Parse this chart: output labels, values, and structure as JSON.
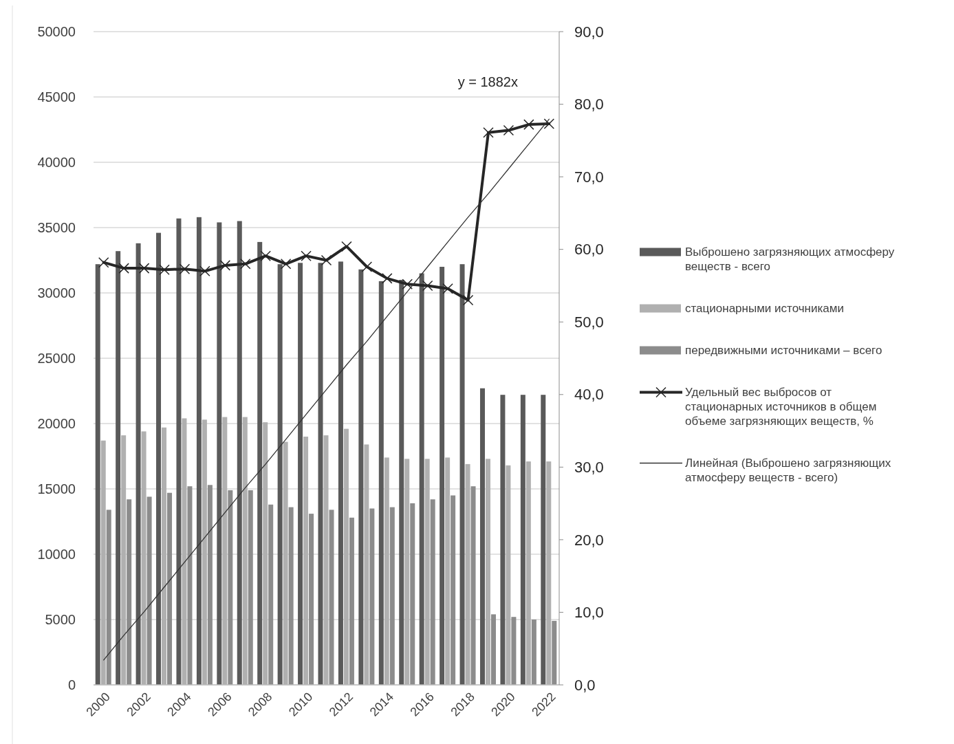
{
  "chart_data": {
    "type": "bar",
    "categories": [
      "2000",
      null,
      "2002",
      null,
      "2004",
      null,
      "2006",
      null,
      "2008",
      null,
      "2010",
      null,
      "2012",
      null,
      "2014",
      null,
      "2016",
      null,
      "2018",
      null,
      "2020",
      null,
      "2022"
    ],
    "series": [
      {
        "name": "Выброшено загрязняющих атмосферу веществ - всего",
        "color": "#5a5a5a",
        "values": [
          32200,
          33200,
          33800,
          34600,
          35700,
          35800,
          35400,
          35500,
          33900,
          32200,
          32300,
          32300,
          32400,
          31800,
          30900,
          31000,
          31500,
          32000,
          32200,
          22700,
          22200,
          22200,
          22200
        ]
      },
      {
        "name": "стационарными источниками",
        "color": "#b0b0b0",
        "values": [
          18700,
          19100,
          19400,
          19700,
          20400,
          20300,
          20500,
          20500,
          20100,
          18600,
          19000,
          19100,
          19600,
          18400,
          17400,
          17300,
          17300,
          17400,
          16900,
          17300,
          16800,
          17100,
          17100
        ]
      },
      {
        "name": "передвижными источниками – всего",
        "color": "#8c8c8c",
        "values": [
          13400,
          14200,
          14400,
          14700,
          15200,
          15300,
          14900,
          14900,
          13800,
          13600,
          13100,
          13400,
          12800,
          13500,
          13600,
          13900,
          14200,
          14500,
          15200,
          5400,
          5200,
          5000,
          4900
        ]
      },
      {
        "name": "Удельный вес выбросов от стационарных источников в общем объеме загрязняющих веществ, %",
        "type": "line",
        "axis": "y2",
        "color": "#262626",
        "marker": "cross",
        "values": [
          58.2,
          57.4,
          57.4,
          57.2,
          57.3,
          57.0,
          57.8,
          58.0,
          59.1,
          58.0,
          59.1,
          58.5,
          60.4,
          57.6,
          56.0,
          55.2,
          55.0,
          54.6,
          53.0,
          76.1,
          76.4,
          77.2,
          77.3
        ]
      },
      {
        "name": "Линейная (Выброшено загрязняющих атмосферу веществ - всего)",
        "type": "line",
        "color": "#333333",
        "marker": "none",
        "values": [
          1900,
          3800,
          5600,
          7500,
          9400,
          11300,
          13200,
          15100,
          16900,
          18800,
          20700,
          22600,
          24500,
          26300,
          28200,
          30100,
          32000,
          33900,
          35800,
          37600,
          39500,
          41400,
          43300
        ]
      }
    ],
    "ylim": [
      0,
      50000
    ],
    "yticks": [
      0,
      5000,
      10000,
      15000,
      20000,
      25000,
      30000,
      35000,
      40000,
      45000,
      50000
    ],
    "y2lim": [
      0,
      90
    ],
    "y2ticks": [
      {
        "value": 0,
        "label": "0,0"
      },
      {
        "value": 10,
        "label": "10,0"
      },
      {
        "value": 20,
        "label": "20,0"
      },
      {
        "value": 30,
        "label": "30,0"
      },
      {
        "value": 40,
        "label": "40,0"
      },
      {
        "value": 50,
        "label": "50,0"
      },
      {
        "value": 60,
        "label": "60,0"
      },
      {
        "value": 70,
        "label": "70,0"
      },
      {
        "value": 80,
        "label": "80,0"
      },
      {
        "value": 90,
        "label": "90,0"
      }
    ],
    "grid": "y",
    "legend": "right",
    "annotations": [
      "y = 1882x"
    ]
  }
}
